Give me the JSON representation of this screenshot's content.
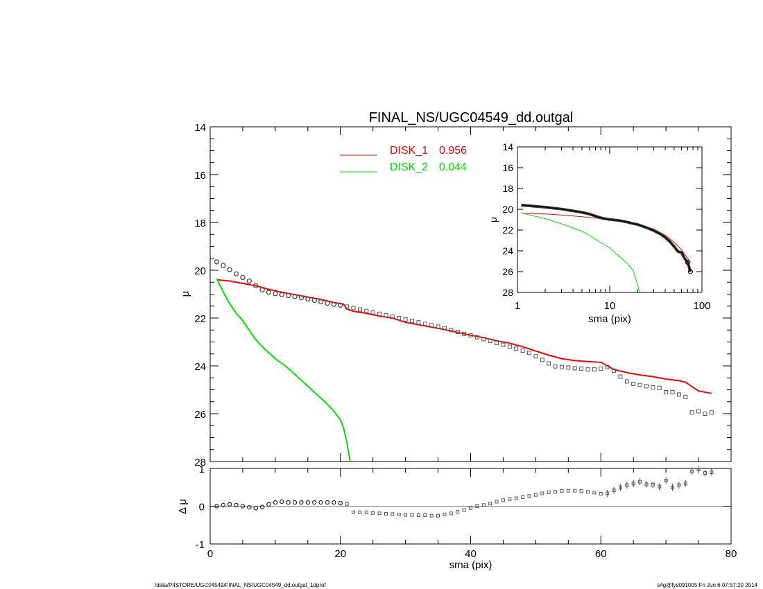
{
  "chart_data": [
    {
      "type": "line",
      "title": "FINAL_NS/UGC04549_dd.outgal",
      "xlabel": "",
      "ylabel": "μ",
      "xlim": [
        0,
        80
      ],
      "ylim": [
        28,
        14
      ],
      "y_inverted": true,
      "yticks": [
        14,
        16,
        18,
        20,
        22,
        24,
        26,
        28
      ],
      "grid": false,
      "legend_placement": "top-center",
      "series": [
        {
          "name": "DISK_1",
          "legend_value": "0.956",
          "color": "#ff0000",
          "x": [
            1,
            3,
            5,
            7,
            9,
            11,
            13,
            15,
            17,
            19,
            20.5,
            21,
            22,
            24,
            26,
            28,
            30,
            32,
            34,
            36,
            38,
            40,
            42,
            44,
            46,
            48,
            50,
            52,
            54,
            56,
            58,
            60,
            62,
            64,
            66,
            68,
            70,
            72,
            73,
            75,
            77
          ],
          "y": [
            20.4,
            20.45,
            20.55,
            20.65,
            20.8,
            20.92,
            21.02,
            21.12,
            21.22,
            21.35,
            21.42,
            21.62,
            21.72,
            21.8,
            21.92,
            22.0,
            22.18,
            22.28,
            22.38,
            22.48,
            22.6,
            22.72,
            22.82,
            22.95,
            23.05,
            23.2,
            23.38,
            23.55,
            23.7,
            23.78,
            23.82,
            23.85,
            24.15,
            24.28,
            24.38,
            24.45,
            24.55,
            24.62,
            24.68,
            25.05,
            25.15
          ]
        },
        {
          "name": "DISK_2",
          "legend_value": "0.044",
          "color": "#00dd00",
          "x": [
            1,
            2,
            3,
            4,
            5,
            6,
            7,
            8,
            9,
            10,
            11,
            12,
            13,
            14,
            15,
            16,
            17,
            18,
            19,
            20,
            20.5,
            21,
            21.5
          ],
          "y": [
            20.35,
            20.9,
            21.4,
            21.8,
            22.1,
            22.5,
            22.9,
            23.2,
            23.45,
            23.7,
            23.9,
            24.1,
            24.35,
            24.6,
            24.85,
            25.1,
            25.35,
            25.6,
            25.9,
            26.25,
            26.6,
            27.2,
            28
          ]
        }
      ],
      "observed": {
        "color": "#555555",
        "x": [
          1,
          2,
          3,
          4,
          5,
          6,
          7,
          8,
          9,
          10,
          11,
          12,
          13,
          14,
          15,
          16,
          17,
          18,
          19,
          20,
          21,
          22,
          23,
          24,
          25,
          26,
          27,
          28,
          29,
          30,
          31,
          32,
          33,
          34,
          35,
          36,
          37,
          38,
          39,
          40,
          41,
          42,
          43,
          44,
          45,
          46,
          47,
          48,
          49,
          50,
          51,
          52,
          53,
          54,
          55,
          56,
          57,
          58,
          59,
          60,
          61,
          62,
          63,
          64,
          65,
          66,
          67,
          68,
          69,
          70,
          71,
          72,
          73,
          74,
          75,
          76,
          77
        ],
        "y": [
          19.65,
          19.8,
          19.98,
          20.15,
          20.3,
          20.45,
          20.65,
          20.82,
          20.92,
          20.98,
          21.02,
          21.06,
          21.1,
          21.15,
          21.2,
          21.26,
          21.32,
          21.38,
          21.43,
          21.46,
          21.52,
          21.58,
          21.64,
          21.7,
          21.76,
          21.82,
          21.88,
          21.94,
          22.0,
          22.06,
          22.12,
          22.18,
          22.24,
          22.3,
          22.36,
          22.42,
          22.5,
          22.58,
          22.66,
          22.72,
          22.8,
          22.88,
          22.96,
          23.04,
          23.12,
          23.2,
          23.28,
          23.36,
          23.46,
          23.6,
          23.75,
          23.9,
          24.02,
          24.05,
          24.07,
          24.1,
          24.12,
          24.15,
          24.15,
          24.12,
          24.05,
          24.2,
          24.45,
          24.65,
          24.75,
          24.8,
          24.85,
          24.9,
          24.92,
          25.1,
          25.1,
          25.2,
          25.3,
          25.95,
          25.9,
          26.0,
          25.95
        ]
      }
    },
    {
      "type": "scatter",
      "xlabel": "sma (pix)",
      "ylabel": "Δ μ",
      "xlim": [
        0,
        80
      ],
      "ylim": [
        -1,
        1
      ],
      "xticks": [
        0,
        20,
        40,
        60,
        80
      ],
      "yticks": [
        -1,
        0,
        1
      ],
      "reference_line": 0,
      "x": [
        1,
        2,
        3,
        4,
        5,
        6,
        7,
        8,
        9,
        10,
        11,
        12,
        13,
        14,
        15,
        16,
        17,
        18,
        19,
        20,
        21,
        22,
        23,
        24,
        25,
        26,
        27,
        28,
        29,
        30,
        31,
        32,
        33,
        34,
        35,
        36,
        37,
        38,
        39,
        40,
        41,
        42,
        43,
        44,
        45,
        46,
        47,
        48,
        49,
        50,
        51,
        52,
        53,
        54,
        55,
        56,
        57,
        58,
        59,
        60,
        61,
        62,
        63,
        64,
        65,
        66,
        67,
        68,
        69,
        70,
        71,
        72,
        73,
        74,
        75,
        76,
        77
      ],
      "y": [
        0.0,
        0.03,
        0.05,
        0.03,
        0.0,
        -0.03,
        -0.05,
        -0.02,
        0.05,
        0.1,
        0.12,
        0.1,
        0.1,
        0.1,
        0.1,
        0.1,
        0.1,
        0.1,
        0.1,
        0.08,
        0.06,
        -0.16,
        -0.16,
        -0.16,
        -0.18,
        -0.19,
        -0.2,
        -0.21,
        -0.22,
        -0.23,
        -0.23,
        -0.24,
        -0.24,
        -0.25,
        -0.25,
        -0.22,
        -0.19,
        -0.15,
        -0.1,
        -0.05,
        0.0,
        0.03,
        0.07,
        0.12,
        0.16,
        0.19,
        0.21,
        0.24,
        0.27,
        0.3,
        0.34,
        0.37,
        0.38,
        0.4,
        0.41,
        0.41,
        0.4,
        0.38,
        0.36,
        0.33,
        0.34,
        0.42,
        0.5,
        0.56,
        0.6,
        0.65,
        0.58,
        0.57,
        0.52,
        0.68,
        0.5,
        0.56,
        0.6,
        0.92,
        0.97,
        0.88,
        0.9
      ]
    },
    {
      "type": "line",
      "inset": true,
      "xlabel": "sma (pix)",
      "ylabel": "μ",
      "x_scale": "log",
      "xlim": [
        1,
        100
      ],
      "ylim": [
        28,
        14
      ],
      "xticks": [
        1,
        10,
        100
      ],
      "yticks": [
        14,
        16,
        18,
        20,
        22,
        24,
        26,
        28
      ],
      "series": [
        {
          "color": "#ff0000",
          "x": [
            1.1,
            2,
            3,
            5,
            8,
            10,
            15,
            20,
            30,
            40,
            50,
            60,
            75
          ],
          "y": [
            20.4,
            20.45,
            20.55,
            20.72,
            20.9,
            21.0,
            21.2,
            21.45,
            21.9,
            22.5,
            23.2,
            23.9,
            25.1
          ]
        },
        {
          "color": "#00dd00",
          "x": [
            1.1,
            2,
            3,
            4,
            5,
            6,
            8,
            10,
            12,
            14,
            16,
            18,
            19,
            20,
            21
          ],
          "y": [
            20.35,
            20.9,
            21.4,
            21.8,
            22.1,
            22.5,
            23.2,
            23.7,
            24.35,
            24.85,
            25.35,
            25.9,
            26.6,
            27.2,
            28
          ]
        }
      ],
      "observed": {
        "x": [
          1.1,
          2,
          3,
          4,
          5,
          6,
          7,
          8,
          9,
          10,
          12,
          14,
          16,
          18,
          20,
          25,
          30,
          35,
          40,
          45,
          50,
          55,
          60,
          65,
          70,
          75
        ],
        "y": [
          19.6,
          19.8,
          19.98,
          20.15,
          20.3,
          20.45,
          20.65,
          20.82,
          20.92,
          20.98,
          21.06,
          21.15,
          21.26,
          21.38,
          21.46,
          21.76,
          22.06,
          22.36,
          22.72,
          23.12,
          23.6,
          24.07,
          24.15,
          24.75,
          25.1,
          26.0
        ]
      }
    }
  ],
  "footer": {
    "path": "/data/P4STORE/UGC04549/FINAL_NS/UGC04549_dd.outgal_1dprof",
    "stamp": "s4g@fys091005  Fri Jun  6 07:57:20 2014"
  }
}
